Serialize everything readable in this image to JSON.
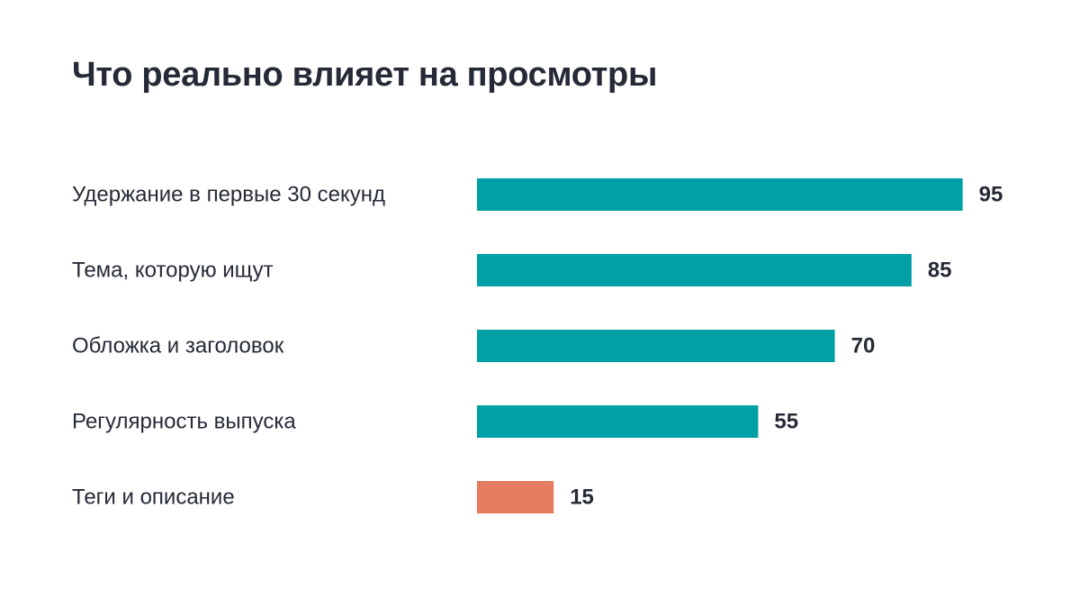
{
  "chart_data": {
    "type": "bar",
    "orientation": "horizontal",
    "title": "Что реально влияет на просмотры",
    "categories": [
      "Удержание в первые 30 секунд",
      "Тема, которую ищут",
      "Обложка и заголовок",
      "Регулярность выпуска",
      "Теги и описание"
    ],
    "values": [
      95,
      85,
      70,
      55,
      15
    ],
    "xlim": [
      0,
      100
    ],
    "grid": false,
    "legend": false,
    "colors": {
      "primary": "#00a0a6",
      "highlight": "#e57b5f",
      "text": "#252a36"
    },
    "highlight_index": 4
  }
}
